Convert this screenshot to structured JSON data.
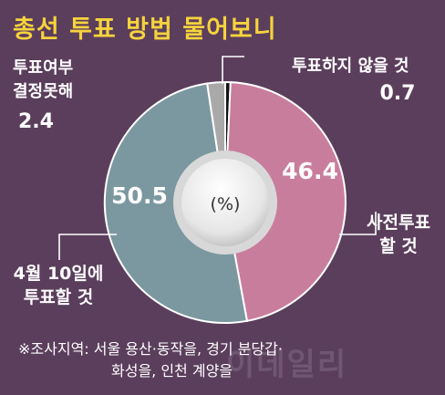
{
  "title": "총선 투표 방법 물어보니",
  "chart_data": {
    "type": "pie",
    "style": "donut",
    "unit": "(%)",
    "slices": [
      {
        "label": "투표하지 않을 것",
        "value": 0.7,
        "value_text": "0.7",
        "color": "#111111"
      },
      {
        "label": "사전투표 할 것",
        "value": 46.4,
        "value_text": "46.4",
        "color": "#c97d9c"
      },
      {
        "label": "4월 10일에 투표할 것",
        "value": 50.5,
        "value_text": "50.5",
        "color": "#7b98a0"
      },
      {
        "label": "투표여부 결정못해",
        "value": 2.4,
        "value_text": "2.4",
        "color": "#a9a9a9"
      }
    ]
  },
  "labels": {
    "no_vote": [
      "투표하지 않을 것",
      "0.7"
    ],
    "early_vote": [
      "사전투표",
      "할 것"
    ],
    "election_day": [
      "4월 10일에",
      "투표할 것"
    ],
    "undecided": [
      "투표여부",
      "결정못해",
      "2.4"
    ]
  },
  "footnote": {
    "line1": "※조사지역: 서울 용산·동작을, 경기 분당갑·",
    "line2": "화성을, 인천 계양을"
  },
  "watermark": "이데일리"
}
